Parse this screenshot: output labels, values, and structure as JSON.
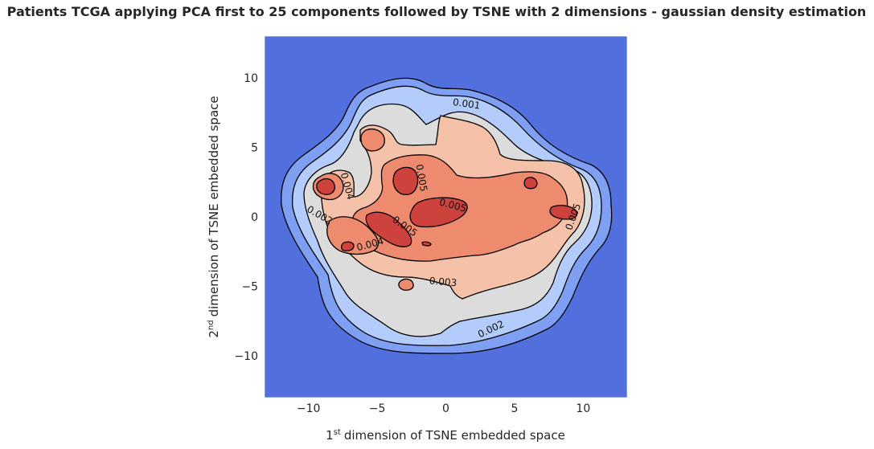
{
  "chart_data": {
    "type": "contour",
    "title": "Patients TCGA applying PCA first to 25 components followed by TSNE with 2 dimensions - gaussian density estimation",
    "xlabel": "dimension of TSNE embedded space",
    "xlabel_prefix": "1",
    "xlabel_sup": "st",
    "ylabel": "dimension of TSNE embedded space",
    "ylabel_prefix": "2",
    "ylabel_sup": "nd",
    "xlim": [
      -13.2,
      13.2
    ],
    "ylim": [
      -13.0,
      13.0
    ],
    "xticks": [
      -10,
      -5,
      0,
      5,
      10
    ],
    "yticks": [
      10,
      5,
      0,
      -5,
      -10
    ],
    "xtick_labels": [
      "−10",
      "−5",
      "0",
      "5",
      "10"
    ],
    "ytick_labels": [
      "10",
      "5",
      "0",
      "−5",
      "−10"
    ],
    "colormap": "coolwarm",
    "background_color": "#5170DE",
    "contour_line_color": "#000000",
    "levels": [
      {
        "value": 0.0005,
        "color": "#7F9FF2"
      },
      {
        "value": 0.001,
        "color": "#B3CCFB"
      },
      {
        "value": 0.002,
        "color": "#DCDCDC"
      },
      {
        "value": 0.003,
        "color": "#F5C1A9"
      },
      {
        "value": 0.004,
        "color": "#EE8A6E"
      },
      {
        "value": 0.005,
        "color": "#CD423C"
      }
    ],
    "contour_labels": [
      {
        "text": "0.001",
        "x": 1.5,
        "y": 8.1,
        "rotate": 8
      },
      {
        "text": "0.002",
        "x": -9.2,
        "y": 0.1,
        "rotate": 30
      },
      {
        "text": "0.002",
        "x": 3.3,
        "y": -8.1,
        "rotate": -25
      },
      {
        "text": "0.003",
        "x": -0.2,
        "y": -4.7,
        "rotate": 5
      },
      {
        "text": "0.004",
        "x": -7.2,
        "y": 2.2,
        "rotate": 75
      },
      {
        "text": "0.004",
        "x": -5.5,
        "y": -2.0,
        "rotate": -15
      },
      {
        "text": "0.005",
        "x": -1.8,
        "y": 2.8,
        "rotate": 80
      },
      {
        "text": "0.005",
        "x": 0.5,
        "y": 0.8,
        "rotate": 15
      },
      {
        "text": "0.005",
        "x": -3.0,
        "y": -0.7,
        "rotate": 35
      },
      {
        "text": "0.005",
        "x": 9.3,
        "y": 0.0,
        "rotate": -70
      }
    ]
  }
}
